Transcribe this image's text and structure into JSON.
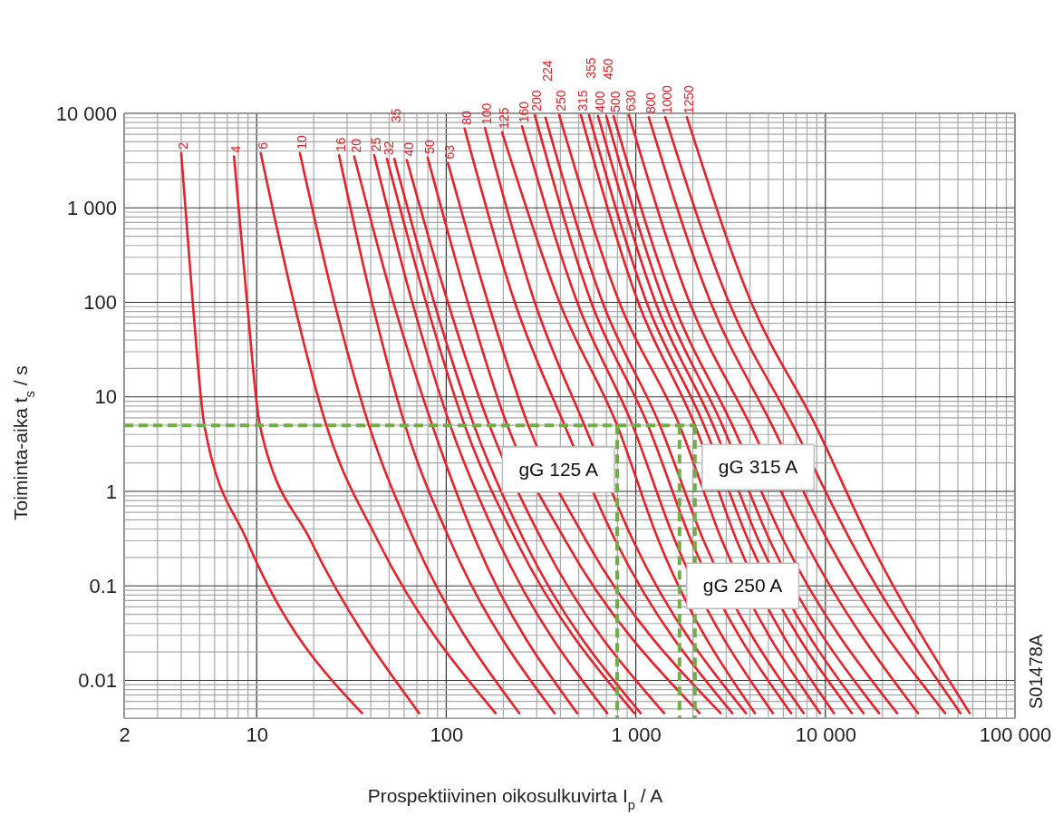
{
  "chart_data": {
    "type": "line",
    "xlabel": "Prospektiivinen oikosulkuvirta I$_{p}$ / A",
    "ylabel": "Toiminta-aika  t$_{s}$ / s",
    "log": "xy",
    "grid": true,
    "marker": "none",
    "xlim": [
      2,
      100000
    ],
    "xticks": [
      2,
      {
        "value": 3,
        "label": null
      },
      {
        "value": 4,
        "label": null
      },
      {
        "value": 5,
        "label": null
      },
      {
        "value": 6,
        "label": null
      },
      {
        "value": 7,
        "label": null
      },
      {
        "value": 8,
        "label": null
      },
      {
        "value": 9,
        "label": null
      },
      10,
      {
        "value": 20,
        "label": null
      },
      {
        "value": 30,
        "label": null
      },
      {
        "value": 40,
        "label": null
      },
      {
        "value": 50,
        "label": null
      },
      {
        "value": 60,
        "label": null
      },
      {
        "value": 70,
        "label": null
      },
      {
        "value": 80,
        "label": null
      },
      {
        "value": 90,
        "label": null
      },
      100,
      {
        "value": 200,
        "label": null
      },
      {
        "value": 300,
        "label": null
      },
      {
        "value": 400,
        "label": null
      },
      {
        "value": 500,
        "label": null
      },
      {
        "value": 600,
        "label": null
      },
      {
        "value": 700,
        "label": null
      },
      {
        "value": 800,
        "label": null
      },
      {
        "value": 900,
        "label": null
      },
      {
        "value": 1000,
        "label": "1 000"
      },
      {
        "value": 2000,
        "label": null
      },
      {
        "value": 3000,
        "label": null
      },
      {
        "value": 4000,
        "label": null
      },
      {
        "value": 5000,
        "label": null
      },
      {
        "value": 6000,
        "label": null
      },
      {
        "value": 7000,
        "label": null
      },
      {
        "value": 8000,
        "label": null
      },
      {
        "value": 9000,
        "label": null
      },
      {
        "value": 10000,
        "label": "10 000"
      },
      {
        "value": 20000,
        "label": null
      },
      {
        "value": 30000,
        "label": null
      },
      {
        "value": 40000,
        "label": null
      },
      {
        "value": 50000,
        "label": null
      },
      {
        "value": 60000,
        "label": null
      },
      {
        "value": 70000,
        "label": null
      },
      {
        "value": 80000,
        "label": null
      },
      {
        "value": 90000,
        "label": null
      },
      {
        "value": 100000,
        "label": "100 000"
      }
    ],
    "ylim": [
      0.004,
      10000
    ],
    "yticks": [
      {
        "value": 0.005,
        "label": null
      },
      {
        "value": 0.006,
        "label": null
      },
      {
        "value": 0.007,
        "label": null
      },
      {
        "value": 0.008,
        "label": null
      },
      {
        "value": 0.009,
        "label": null
      },
      0.01,
      {
        "value": 0.02,
        "label": null
      },
      {
        "value": 0.03,
        "label": null
      },
      {
        "value": 0.04,
        "label": null
      },
      {
        "value": 0.05,
        "label": null
      },
      {
        "value": 0.06,
        "label": null
      },
      {
        "value": 0.07,
        "label": null
      },
      {
        "value": 0.08,
        "label": null
      },
      {
        "value": 0.09,
        "label": null
      },
      0.1,
      {
        "value": 0.2,
        "label": null
      },
      {
        "value": 0.3,
        "label": null
      },
      {
        "value": 0.4,
        "label": null
      },
      {
        "value": 0.5,
        "label": null
      },
      {
        "value": 0.6,
        "label": null
      },
      {
        "value": 0.7,
        "label": null
      },
      {
        "value": 0.8,
        "label": null
      },
      {
        "value": 0.9,
        "label": null
      },
      1,
      {
        "value": 2,
        "label": null
      },
      {
        "value": 3,
        "label": null
      },
      {
        "value": 4,
        "label": null
      },
      {
        "value": 5,
        "label": null
      },
      {
        "value": 6,
        "label": null
      },
      {
        "value": 7,
        "label": null
      },
      {
        "value": 8,
        "label": null
      },
      {
        "value": 9,
        "label": null
      },
      10,
      {
        "value": 20,
        "label": null
      },
      {
        "value": 30,
        "label": null
      },
      {
        "value": 40,
        "label": null
      },
      {
        "value": 50,
        "label": null
      },
      {
        "value": 60,
        "label": null
      },
      {
        "value": 70,
        "label": null
      },
      {
        "value": 80,
        "label": null
      },
      {
        "value": 90,
        "label": null
      },
      100,
      {
        "value": 200,
        "label": null
      },
      {
        "value": 300,
        "label": null
      },
      {
        "value": 400,
        "label": null
      },
      {
        "value": 500,
        "label": null
      },
      {
        "value": 600,
        "label": null
      },
      {
        "value": 700,
        "label": null
      },
      {
        "value": 800,
        "label": null
      },
      {
        "value": 900,
        "label": null
      },
      {
        "value": 1000,
        "label": "1 000"
      },
      {
        "value": 2000,
        "label": null
      },
      {
        "value": 3000,
        "label": null
      },
      {
        "value": 4000,
        "label": null
      },
      {
        "value": 5000,
        "label": null
      },
      {
        "value": 6000,
        "label": null
      },
      {
        "value": 7000,
        "label": null
      },
      {
        "value": 8000,
        "label": null
      },
      {
        "value": 9000,
        "label": null
      },
      {
        "value": 10000,
        "label": "10 000"
      }
    ],
    "series": [
      {
        "name": "2",
        "color": "#e8202a",
        "x": [
          4.0,
          4.6,
          5.3,
          8.9,
          36
        ],
        "values": [
          3800,
          100,
          5,
          0.3,
          0.0045
        ]
      },
      {
        "name": "4",
        "color": "#e8202a",
        "x": [
          7.6,
          8.9,
          10.4,
          19.3,
          72
        ],
        "values": [
          3500,
          100,
          5,
          0.3,
          0.0045
        ]
      },
      {
        "name": "6",
        "color": "#e8202a",
        "x": [
          10.5,
          15.7,
          23.3,
          43.6,
          182
        ],
        "values": [
          3800,
          100,
          5,
          0.3,
          0.0045
        ]
      },
      {
        "name": "10",
        "color": "#e8202a",
        "x": [
          16.9,
          25.7,
          39.1,
          68,
          243
        ],
        "values": [
          3800,
          100,
          5,
          0.3,
          0.0045
        ]
      },
      {
        "name": "16",
        "color": "#e8202a",
        "x": [
          27.2,
          40.6,
          60.7,
          105,
          373
        ],
        "values": [
          3600,
          100,
          5,
          0.3,
          0.0045
        ]
      },
      {
        "name": "20",
        "color": "#e8202a",
        "x": [
          32.7,
          52.6,
          84.4,
          143,
          491
        ],
        "values": [
          3500,
          100,
          5,
          0.3,
          0.0045
        ]
      },
      {
        "name": "25",
        "color": "#e8202a",
        "x": [
          41.7,
          66.2,
          105,
          188,
          706
        ],
        "values": [
          3600,
          100,
          5,
          0.3,
          0.0045
        ]
      },
      {
        "name": "32",
        "color": "#e8202a",
        "x": [
          48.7,
          78.2,
          125,
          234,
          982
        ],
        "values": [
          3300,
          100,
          5,
          0.3,
          0.0045
        ]
      },
      {
        "name": "35",
        "color": "#e8202a",
        "x": [
          53.2,
          86.3,
          140,
          258,
          1060
        ],
        "values": [
          3300,
          100,
          5,
          0.3,
          0.0045
        ]
      },
      {
        "name": "40",
        "color": "#e8202a",
        "x": [
          62,
          102,
          169,
          321,
          1410
        ],
        "values": [
          3200,
          100,
          5,
          0.3,
          0.0045
        ]
      },
      {
        "name": "50",
        "color": "#e8202a",
        "x": [
          79.8,
          130,
          210,
          426,
          2170
        ],
        "values": [
          3400,
          100,
          5,
          0.3,
          0.0045
        ]
      },
      {
        "name": "63",
        "color": "#e8202a",
        "x": [
          102,
          166,
          271,
          548,
          2800
        ],
        "values": [
          3000,
          100,
          5,
          0.3,
          0.0045
        ]
      },
      {
        "name": "80",
        "color": "#e8202a",
        "x": [
          125,
          230,
          421,
          782,
          3230
        ],
        "values": [
          6900,
          100,
          5,
          0.3,
          0.0045
        ]
      },
      {
        "name": "100",
        "color": "#e8202a",
        "x": [
          160,
          293,
          536,
          969,
          3810
        ],
        "values": [
          7000,
          100,
          5,
          0.3,
          0.0045
        ]
      },
      {
        "name": "125",
        "color": "#e8202a",
        "x": [
          197,
          396,
          797,
          1320,
          4250
        ],
        "values": [
          6300,
          100,
          5,
          0.3,
          0.0045
        ]
      },
      {
        "name": "160",
        "color": "#e8202a",
        "x": [
          251,
          491,
          961,
          1610,
          5290
        ],
        "values": [
          7300,
          100,
          5,
          0.3,
          0.0045
        ]
      },
      {
        "name": "200",
        "color": "#e8202a",
        "x": [
          293,
          582,
          1160,
          1960,
          6600
        ],
        "values": [
          9600,
          100,
          5,
          0.3,
          0.0045
        ]
      },
      {
        "name": "224",
        "color": "#e8202a",
        "x": [
          334,
          668,
          1340,
          2280,
          7690
        ],
        "values": [
          9000,
          100,
          5,
          0.3,
          0.0045
        ]
      },
      {
        "name": "250",
        "color": "#e8202a",
        "x": [
          394,
          819,
          1700,
          2850,
          9380
        ],
        "values": [
          9600,
          100,
          5,
          0.3,
          0.0045
        ]
      },
      {
        "name": "315",
        "color": "#e8202a",
        "x": [
          513,
          1030,
          2050,
          3410,
          11100
        ],
        "values": [
          9600,
          100,
          5,
          0.3,
          0.0045
        ]
      },
      {
        "name": "355",
        "color": "#e8202a",
        "x": [
          566,
          1140,
          2290,
          3930,
          13800
        ],
        "values": [
          9600,
          100,
          5,
          0.3,
          0.0045
        ]
      },
      {
        "name": "400",
        "color": "#e8202a",
        "x": [
          632,
          1270,
          2560,
          4450,
          15900
        ],
        "values": [
          9400,
          100,
          5,
          0.3,
          0.0045
        ]
      },
      {
        "name": "450",
        "color": "#e8202a",
        "x": [
          698,
          1410,
          2860,
          5100,
          19200
        ],
        "values": [
          9400,
          100,
          5,
          0.3,
          0.0045
        ]
      },
      {
        "name": "500",
        "color": "#e8202a",
        "x": [
          763,
          1570,
          3230,
          6030,
          23900
        ],
        "values": [
          9400,
          100,
          5,
          0.3,
          0.0045
        ]
      },
      {
        "name": "630",
        "color": "#e8202a",
        "x": [
          919,
          1920,
          4020,
          7800,
          30800
        ],
        "values": [
          9600,
          100,
          5,
          0.3,
          0.0045
        ]
      },
      {
        "name": "800",
        "color": "#e8202a",
        "x": [
          1170,
          2480,
          5230,
          10300,
          42800
        ],
        "values": [
          9100,
          100,
          5,
          0.3,
          0.0045
        ]
      },
      {
        "name": "1000",
        "color": "#e8202a",
        "x": [
          1430,
          3100,
          6740,
          13600,
          51600
        ],
        "values": [
          9100,
          100,
          5,
          0.3,
          0.0045
        ]
      },
      {
        "name": "1250",
        "color": "#e8202a",
        "x": [
          1860,
          4060,
          8870,
          17100,
          57700
        ],
        "values": [
          9100,
          100,
          5,
          0.3,
          0.0045
        ]
      },
      {
        "color": "#70ad47",
        "line_style": "dashed",
        "x": [
          2,
          2050
        ],
        "values": [
          5,
          5
        ]
      },
      {
        "color": "#70ad47",
        "line_style": "dashed",
        "x": [
          797,
          797
        ],
        "values": [
          5,
          0.004
        ]
      },
      {
        "color": "#70ad47",
        "line_style": "dashed",
        "x": [
          1700,
          1700
        ],
        "values": [
          5,
          0.004
        ]
      },
      {
        "color": "#70ad47",
        "line_style": "dashed",
        "x": [
          2050,
          2050
        ],
        "values": [
          5,
          0.004
        ]
      }
    ],
    "annotations": [
      {
        "text": "gG 125 A",
        "x": 797,
        "y": 1.7
      },
      {
        "text": "gG 315 A",
        "x": 2050,
        "y": 1.8
      },
      {
        "text": "gG 250 A",
        "x": 1700,
        "y": 0.1
      },
      "S01478A"
    ]
  }
}
